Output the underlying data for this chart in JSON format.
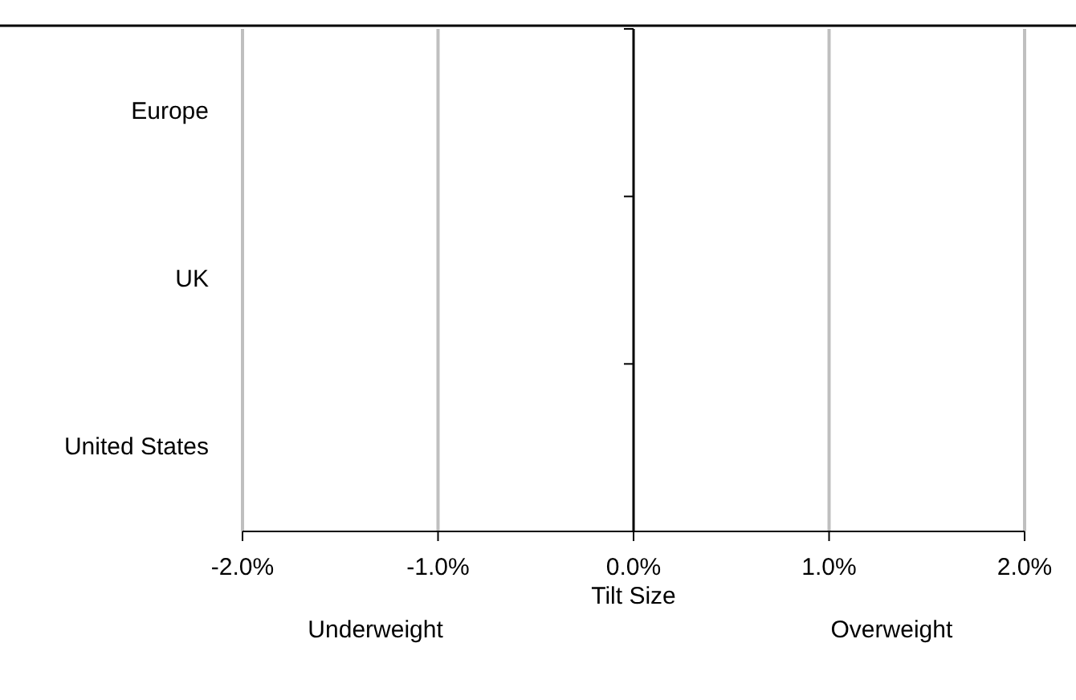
{
  "chart_data": {
    "type": "bar",
    "orientation": "horizontal",
    "categories": [
      "Europe",
      "UK",
      "United States"
    ],
    "values": [
      null,
      null,
      null
    ],
    "xlim": [
      -0.02,
      0.02
    ],
    "xticks": [
      {
        "value": -0.02,
        "label": "-2.0%"
      },
      {
        "value": -0.01,
        "label": "-1.0%"
      },
      {
        "value": 0,
        "label": "0.0%"
      },
      {
        "value": 0.01,
        "label": "1.0%"
      },
      {
        "value": 0.02,
        "label": "2.0%"
      }
    ],
    "xlabel": "Tilt Size",
    "grid": "x",
    "annotations": [
      "Underweight",
      "Overweight"
    ]
  }
}
